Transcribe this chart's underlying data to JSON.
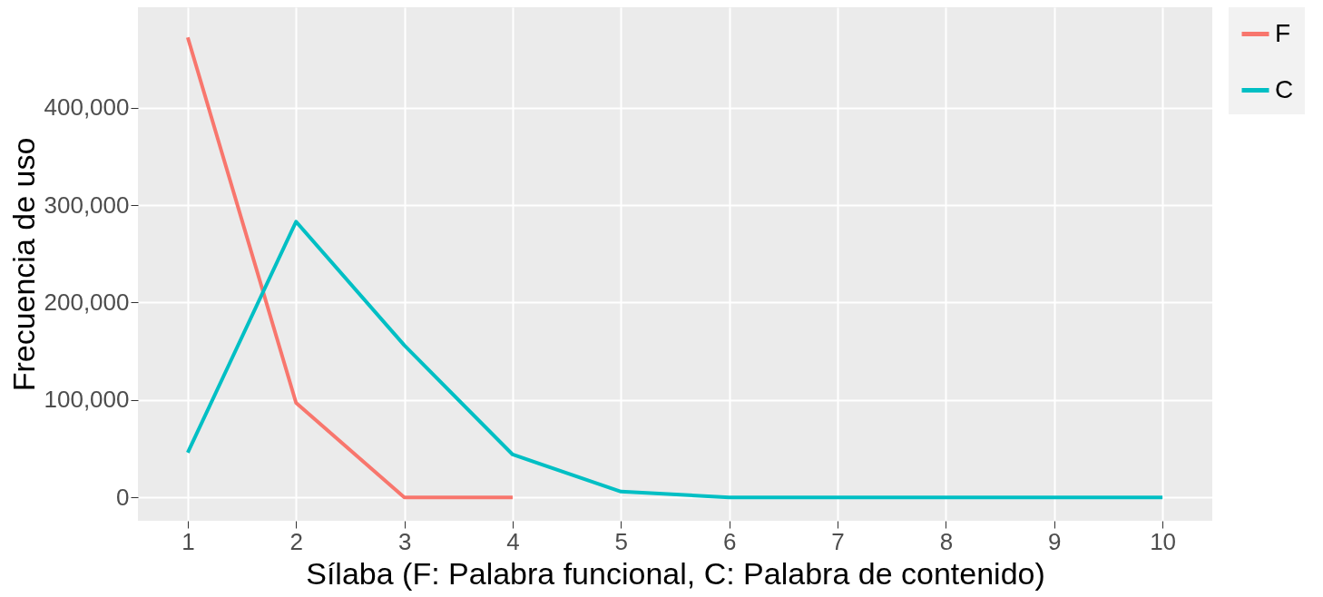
{
  "chart_data": {
    "type": "line",
    "xlabel": "Sílaba (F: Palabra funcional, C: Palabra de contenido)",
    "ylabel": "Frecuencia de uso",
    "series": [
      {
        "name": "F",
        "color": "#f8766d",
        "x": [
          1,
          2,
          3,
          4
        ],
        "values": [
          472000,
          97000,
          0,
          0
        ]
      },
      {
        "name": "C",
        "color": "#00bfc4",
        "x": [
          1,
          2,
          3,
          4,
          5,
          6,
          7,
          8,
          9,
          10
        ],
        "values": [
          46000,
          283000,
          156000,
          44000,
          6000,
          0,
          0,
          0,
          0,
          0
        ]
      }
    ],
    "xlim": [
      0.54,
      10.46
    ],
    "xticks": [
      1,
      2,
      3,
      4,
      5,
      6,
      7,
      8,
      9,
      10
    ],
    "ylim": [
      -24000,
      503000
    ],
    "yticks": [
      {
        "value": 0,
        "label": "0"
      },
      {
        "value": 100000,
        "label": "100,000"
      },
      {
        "value": 200000,
        "label": "200,000"
      },
      {
        "value": 300000,
        "label": "300,000"
      },
      {
        "value": 400000,
        "label": "400,000"
      }
    ],
    "grid": true,
    "legend": "right",
    "marker": "none",
    "line_style": "solid"
  }
}
